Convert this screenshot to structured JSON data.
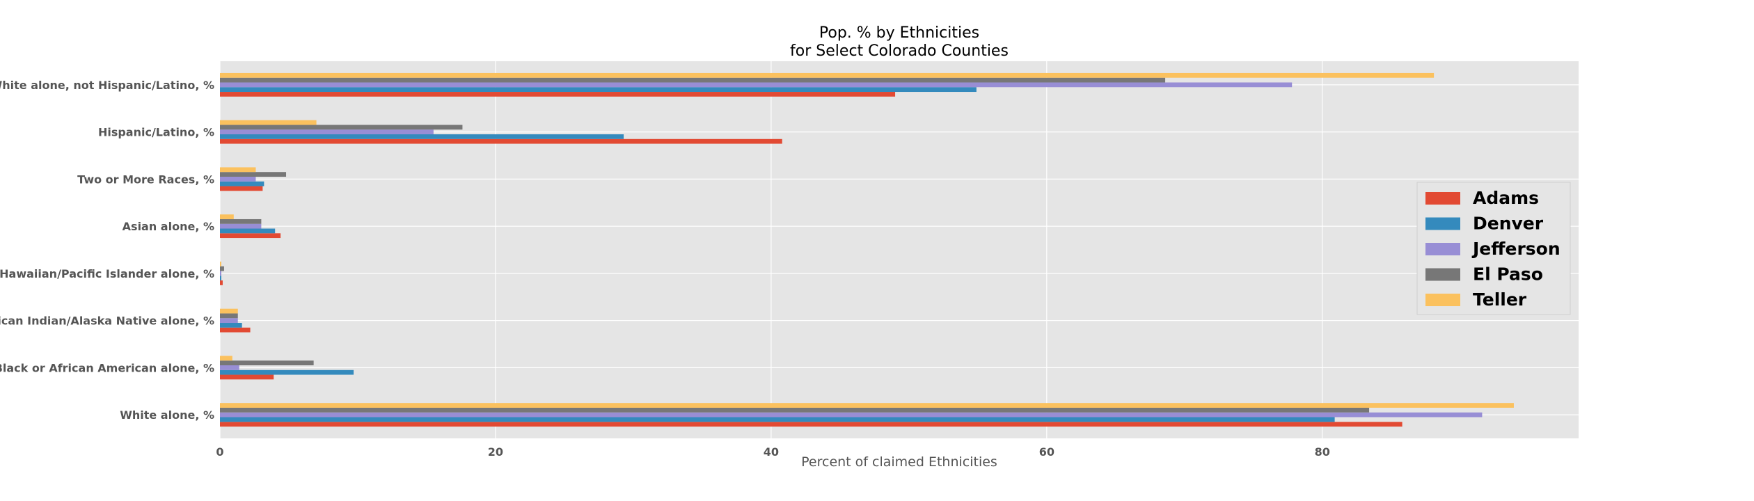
{
  "chart_data": {
    "type": "bar",
    "orientation": "horizontal",
    "title": [
      "Pop. % by Ethnicities",
      "for Select Colorado Counties"
    ],
    "xlabel": "Percent of claimed Ethnicities",
    "ylabel": "",
    "xlim": [
      0,
      98.6
    ],
    "xticks": [
      0,
      20,
      40,
      60,
      80
    ],
    "grid": true,
    "legend_position": "right",
    "categories": [
      "White alone, %",
      "Black or African American alone, %",
      "American Indian/Alaska Native alone, %",
      "Native Hawaiian/Pacific Islander alone, %",
      "Asian alone, %",
      "Two or More Races, %",
      "Hispanic/Latino, %",
      "White alone, not Hispanic/Latino, %"
    ],
    "series": [
      {
        "name": "Adams",
        "color": "#E24A33",
        "values": [
          85.8,
          3.9,
          2.2,
          0.2,
          4.4,
          3.1,
          40.8,
          49.0
        ]
      },
      {
        "name": "Denver",
        "color": "#348ABD",
        "values": [
          80.9,
          9.7,
          1.6,
          0.1,
          4.0,
          3.2,
          29.3,
          54.9
        ]
      },
      {
        "name": "Jefferson",
        "color": "#988ED5",
        "values": [
          91.6,
          1.4,
          1.3,
          0.1,
          3.0,
          2.6,
          15.5,
          77.8
        ]
      },
      {
        "name": "El Paso",
        "color": "#777777",
        "values": [
          83.4,
          6.8,
          1.3,
          0.3,
          3.0,
          4.8,
          17.6,
          68.6
        ]
      },
      {
        "name": "Teller",
        "color": "#FBC15E",
        "values": [
          93.9,
          0.9,
          1.3,
          0.1,
          1.0,
          2.6,
          7.0,
          88.1
        ]
      }
    ]
  }
}
